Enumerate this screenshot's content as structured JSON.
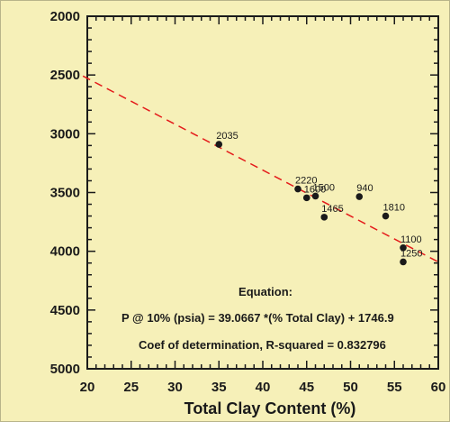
{
  "chart_data": {
    "type": "scatter",
    "title": "",
    "xlabel": "Total Clay Content (%)",
    "ylabel": "",
    "xlim": [
      20,
      60
    ],
    "ylim": [
      2000,
      5000
    ],
    "y_inverted": true,
    "x_ticks": [
      20,
      25,
      30,
      35,
      40,
      45,
      50,
      55,
      60
    ],
    "y_ticks": [
      2000,
      2500,
      3000,
      3500,
      4000,
      4500,
      5000
    ],
    "grid": false,
    "points": [
      {
        "x": 35,
        "y": 3090,
        "label": "2035"
      },
      {
        "x": 44,
        "y": 3470,
        "label": "2220"
      },
      {
        "x": 45,
        "y": 3545,
        "label": "1600"
      },
      {
        "x": 46,
        "y": 3530,
        "label": "1500"
      },
      {
        "x": 47,
        "y": 3710,
        "label": "1465"
      },
      {
        "x": 51,
        "y": 3535,
        "label": "940"
      },
      {
        "x": 54,
        "y": 3700,
        "label": "1810"
      },
      {
        "x": 56,
        "y": 3970,
        "label": "1100"
      },
      {
        "x": 56,
        "y": 4090,
        "label": "1250"
      }
    ],
    "fit": {
      "slope": 39.0667,
      "intercept": 1746.9,
      "color": "#e41b1b",
      "style": "dashed"
    },
    "point_color": "#1a1a1a",
    "annotations": {
      "heading": "Equation:",
      "equation": "P @ 10% (psia) = 39.0667 *(% Total Clay) + 1746.9",
      "r2": "Coef of determination, R-squared = 0.832796"
    }
  }
}
